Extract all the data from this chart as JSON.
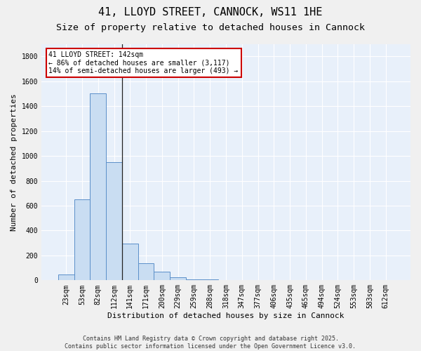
{
  "title": "41, LLOYD STREET, CANNOCK, WS11 1HE",
  "subtitle": "Size of property relative to detached houses in Cannock",
  "xlabel": "Distribution of detached houses by size in Cannock",
  "ylabel": "Number of detached properties",
  "categories": [
    "23sqm",
    "53sqm",
    "82sqm",
    "112sqm",
    "141sqm",
    "171sqm",
    "200sqm",
    "229sqm",
    "259sqm",
    "288sqm",
    "318sqm",
    "347sqm",
    "377sqm",
    "406sqm",
    "435sqm",
    "465sqm",
    "494sqm",
    "524sqm",
    "553sqm",
    "583sqm",
    "612sqm"
  ],
  "values": [
    45,
    650,
    1500,
    950,
    295,
    135,
    70,
    22,
    10,
    5,
    3,
    2,
    2,
    2,
    2,
    2,
    2,
    2,
    2,
    2,
    2
  ],
  "bar_color": "#c9ddf2",
  "bar_edge_color": "#5b8fc9",
  "annotation_text": "41 LLOYD STREET: 142sqm\n← 86% of detached houses are smaller (3,117)\n14% of semi-detached houses are larger (493) →",
  "annotation_box_color": "#ffffff",
  "annotation_box_edge_color": "#cc0000",
  "vline_x": 3.5,
  "ylim": [
    0,
    1900
  ],
  "yticks": [
    0,
    200,
    400,
    600,
    800,
    1000,
    1200,
    1400,
    1600,
    1800
  ],
  "bg_color": "#e8f0fa",
  "grid_color": "#ffffff",
  "fig_bg_color": "#f0f0f0",
  "title_fontsize": 11,
  "subtitle_fontsize": 9.5,
  "axis_label_fontsize": 8,
  "tick_fontsize": 7,
  "footer_fontsize": 6,
  "footer_text": "Contains HM Land Registry data © Crown copyright and database right 2025.\nContains public sector information licensed under the Open Government Licence v3.0."
}
